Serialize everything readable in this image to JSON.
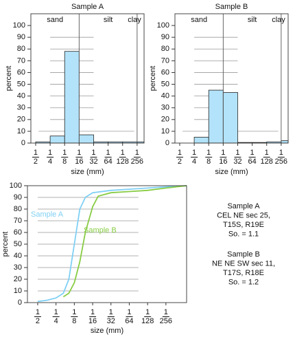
{
  "chart_data": [
    {
      "type": "histogram",
      "title": "Sample A",
      "ylabel": "percent",
      "xlabel": "size (mm)",
      "zones": [
        "sand",
        "silt",
        "clay"
      ],
      "dividers": [
        4,
        8
      ],
      "bins": [
        1,
        2,
        3,
        4,
        5,
        6,
        7,
        8,
        8.48
      ],
      "values": [
        1,
        6,
        78,
        7,
        1,
        1,
        1,
        1
      ],
      "color": "#b3e3fa",
      "xlim": [
        0.67,
        8.48
      ],
      "ylim": [
        0,
        110
      ],
      "xticks": [
        {
          "value": 1,
          "label": "1/2"
        },
        {
          "value": 2,
          "label": "1/4"
        },
        {
          "value": 3,
          "label": "1/8"
        },
        {
          "value": 4,
          "label": "1/16"
        },
        {
          "value": 5,
          "label": "1/32"
        },
        {
          "value": 6,
          "label": "1/64"
        },
        {
          "value": 7,
          "label": "1/128"
        },
        {
          "value": 8,
          "label": "1/256"
        }
      ],
      "yticks": [
        0,
        10,
        20,
        30,
        40,
        50,
        60,
        70,
        80,
        90,
        100
      ],
      "grid": true
    },
    {
      "type": "histogram",
      "title": "Sample B",
      "ylabel": "percent",
      "xlabel": "size (mm)",
      "zones": [
        "sand",
        "silt",
        "clay"
      ],
      "dividers": [
        4,
        8
      ],
      "bins": [
        1,
        2,
        3,
        4,
        5,
        6,
        7,
        8,
        8.48
      ],
      "values": [
        0,
        5,
        45,
        43,
        0.5,
        0.5,
        1,
        2
      ],
      "color": "#b3e3fa",
      "xlim": [
        0.67,
        8.48
      ],
      "ylim": [
        0,
        110
      ],
      "xticks": [
        {
          "value": 1,
          "label": "1/2"
        },
        {
          "value": 2,
          "label": "1/4"
        },
        {
          "value": 3,
          "label": "1/8"
        },
        {
          "value": 4,
          "label": "1/16"
        },
        {
          "value": 5,
          "label": "1/32"
        },
        {
          "value": 6,
          "label": "1/64"
        },
        {
          "value": 7,
          "label": "1/128"
        },
        {
          "value": 8,
          "label": "1/256"
        }
      ],
      "yticks": [
        0,
        10,
        20,
        30,
        40,
        50,
        60,
        70,
        80,
        90,
        100
      ],
      "grid": true
    },
    {
      "type": "line",
      "ylabel": "percent",
      "xlabel": "size (mm)",
      "series": [
        {
          "name": "Sample A",
          "color": "#7fd0f5",
          "x": [
            1,
            1.5,
            2,
            2.4,
            2.7,
            3,
            3.3,
            3.6,
            4,
            5,
            6,
            7,
            8,
            9.13
          ],
          "values": [
            1,
            2,
            4,
            8,
            20,
            50,
            80,
            90,
            94,
            96,
            97,
            98,
            99,
            100
          ]
        },
        {
          "name": "Sample B",
          "color": "#88cc44",
          "x": [
            2.4,
            2.7,
            3,
            3.3,
            3.6,
            4,
            4.3,
            5,
            6,
            7,
            8,
            9.13
          ],
          "values": [
            5,
            8,
            17,
            35,
            60,
            82,
            91,
            94,
            95,
            96,
            98,
            100
          ]
        }
      ],
      "xlim": [
        0.44,
        9.13
      ],
      "ylim": [
        0,
        100
      ],
      "xticks": [
        {
          "value": 1,
          "label": "1/2"
        },
        {
          "value": 2,
          "label": "1/4"
        },
        {
          "value": 3,
          "label": "1/8"
        },
        {
          "value": 4,
          "label": "1/16"
        },
        {
          "value": 5,
          "label": "1/32"
        },
        {
          "value": 6,
          "label": "1/64"
        },
        {
          "value": 7,
          "label": "1/128"
        },
        {
          "value": 8,
          "label": "1/256"
        }
      ],
      "yticks": [
        0,
        10,
        20,
        30,
        40,
        50,
        60,
        70,
        80,
        90,
        100
      ],
      "grid": true
    }
  ],
  "notes": [
    [
      "Sample A",
      "CEL NE sec 25,",
      "T15S, R19E",
      "So. = 1.1"
    ],
    [
      "Sample B",
      "NE NE SW sec 11,",
      "T17S, R18E",
      "So. = 1.2"
    ]
  ]
}
